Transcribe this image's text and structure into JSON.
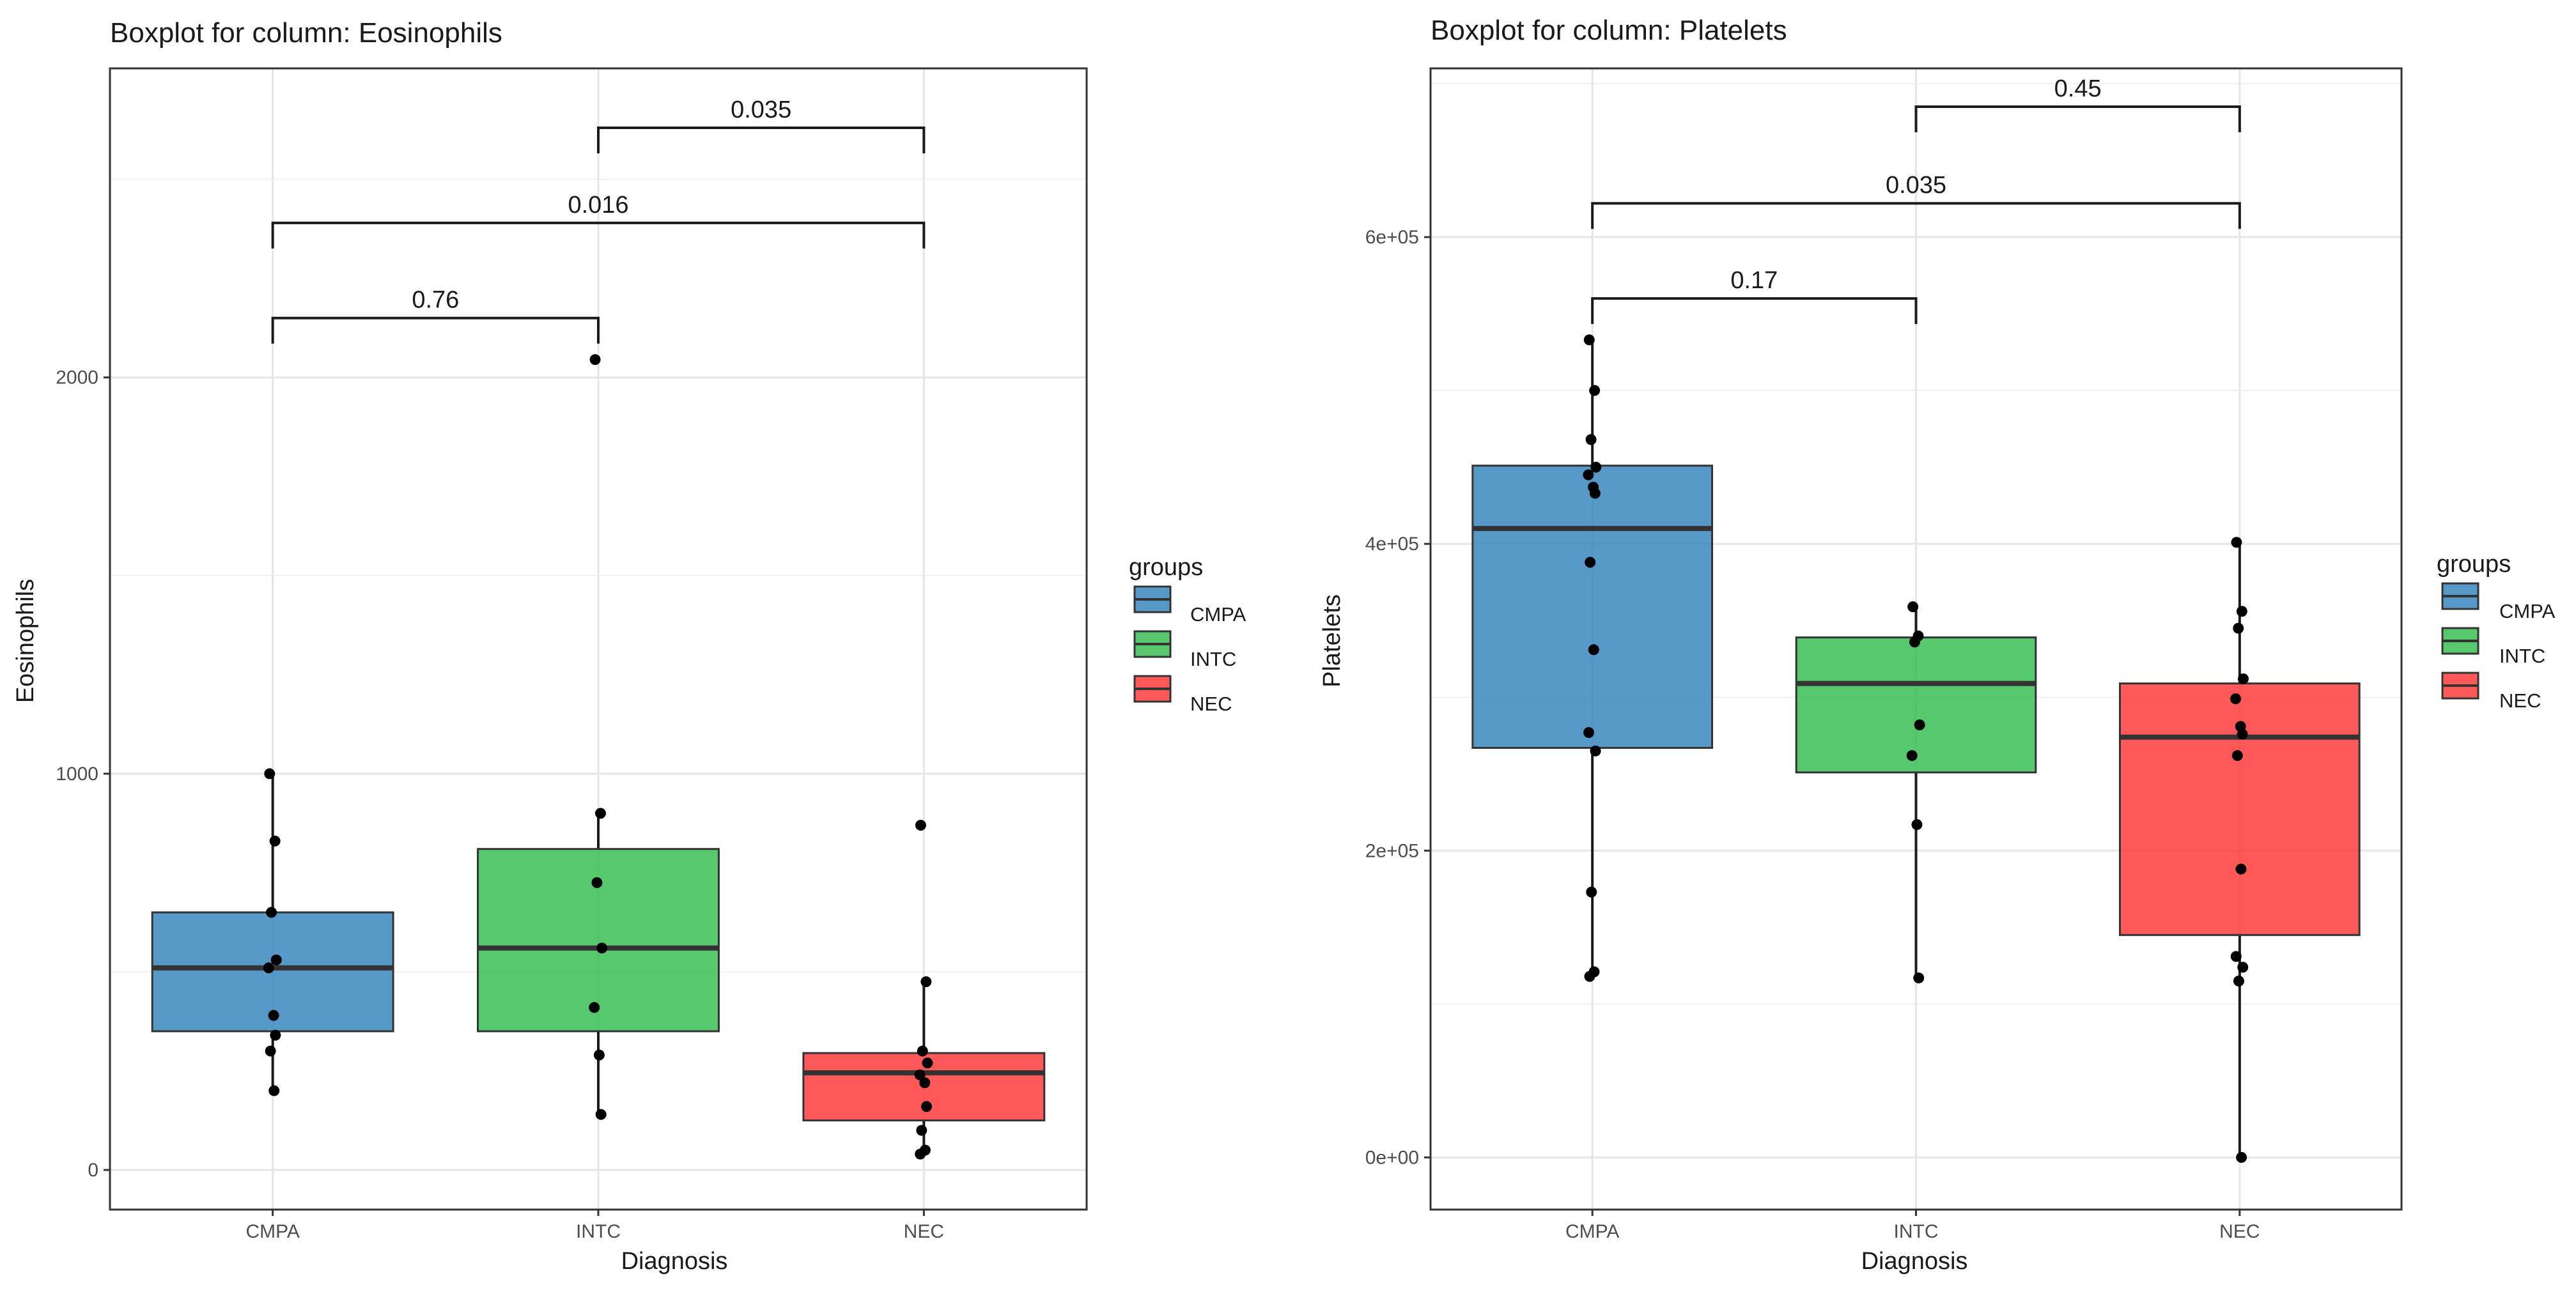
{
  "chart_data": [
    {
      "type": "boxplot",
      "title": "Boxplot for column: Eosinophils",
      "xlabel": "Diagnosis",
      "ylabel": "Eosinophils",
      "categories": [
        "CMPA",
        "INTC",
        "NEC"
      ],
      "ylim": [
        -100,
        2780
      ],
      "yticks": [
        0,
        1000,
        2000
      ],
      "ytick_labels": [
        "0",
        "1000",
        "2000"
      ],
      "legend": {
        "title": "groups",
        "placement": "right",
        "entries": [
          "CMPA",
          "INTC",
          "NEC"
        ]
      },
      "series": [
        {
          "name": "CMPA",
          "color": "#3182bd",
          "q1": 350,
          "median": 510,
          "q3": 650,
          "whisker_low": 200,
          "whisker_high": 1000,
          "points": [
            1000,
            830,
            650,
            530,
            510,
            390,
            340,
            300,
            200
          ]
        },
        {
          "name": "INTC",
          "color": "#31bd4f",
          "q1": 350,
          "median": 560,
          "q3": 810,
          "whisker_low": 140,
          "whisker_high": 900,
          "points": [
            2045,
            900,
            725,
            560,
            410,
            290,
            140
          ]
        },
        {
          "name": "NEC",
          "color": "#ff3333",
          "q1": 125,
          "median": 245,
          "q3": 295,
          "whisker_low": 40,
          "whisker_high": 475,
          "points": [
            870,
            475,
            300,
            270,
            240,
            220,
            160,
            100,
            50,
            40
          ]
        }
      ],
      "comparisons": [
        {
          "groups": [
            "CMPA",
            "INTC"
          ],
          "p": "0.76",
          "y": 2150
        },
        {
          "groups": [
            "CMPA",
            "NEC"
          ],
          "p": "0.016",
          "y": 2390
        },
        {
          "groups": [
            "INTC",
            "NEC"
          ],
          "p": "0.035",
          "y": 2630
        }
      ]
    },
    {
      "type": "boxplot",
      "title": "Boxplot for column: Platelets",
      "xlabel": "Diagnosis",
      "ylabel": "Platelets",
      "categories": [
        "CMPA",
        "INTC",
        "NEC"
      ],
      "ylim": [
        -34000,
        710000
      ],
      "yticks": [
        0,
        200000,
        400000,
        600000
      ],
      "ytick_labels": [
        "0e+00",
        "2e+05",
        "4e+05",
        "6e+05"
      ],
      "legend": {
        "title": "groups",
        "placement": "right",
        "entries": [
          "CMPA",
          "INTC",
          "NEC"
        ]
      },
      "series": [
        {
          "name": "CMPA",
          "color": "#3182bd",
          "q1": 267000,
          "median": 410000,
          "q3": 451000,
          "whisker_low": 118000,
          "whisker_high": 533000,
          "points": [
            533000,
            500000,
            468000,
            450000,
            445000,
            437000,
            433000,
            388000,
            331000,
            277000,
            265000,
            173000,
            121000,
            118000
          ]
        },
        {
          "name": "INTC",
          "color": "#31bd4f",
          "q1": 251000,
          "median": 309000,
          "q3": 339000,
          "whisker_low": 117000,
          "whisker_high": 359000,
          "points": [
            359000,
            340000,
            336000,
            282000,
            262000,
            217000,
            117000
          ]
        },
        {
          "name": "NEC",
          "color": "#ff3333",
          "q1": 145000,
          "median": 274000,
          "q3": 309000,
          "whisker_low": 0,
          "whisker_high": 401000,
          "points": [
            401000,
            356000,
            345000,
            312000,
            299000,
            281000,
            276000,
            262000,
            188000,
            131000,
            124000,
            115000,
            0
          ]
        }
      ],
      "comparisons": [
        {
          "groups": [
            "CMPA",
            "INTC"
          ],
          "p": "0.17",
          "y": 560000
        },
        {
          "groups": [
            "CMPA",
            "NEC"
          ],
          "p": "0.035",
          "y": 622000
        },
        {
          "groups": [
            "INTC",
            "NEC"
          ],
          "p": "0.45",
          "y": 685000
        }
      ]
    }
  ]
}
